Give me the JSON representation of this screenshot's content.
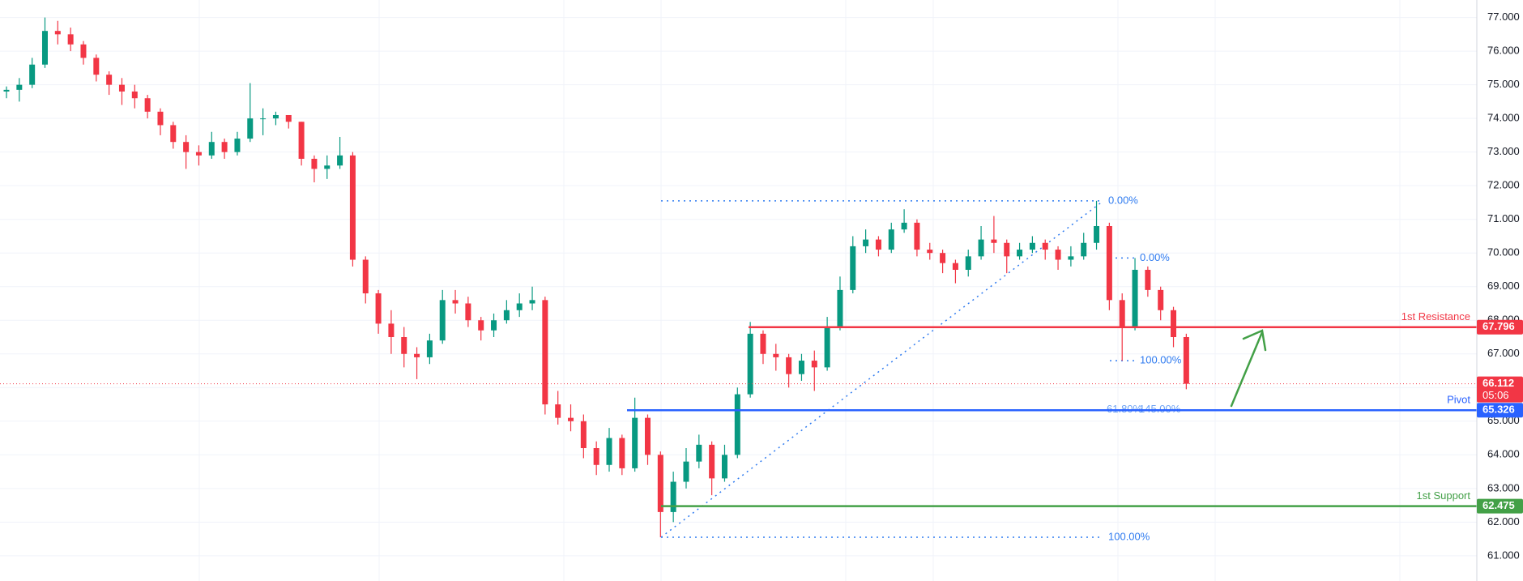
{
  "chart_data": {
    "type": "candlestick",
    "ylim": [
      60.25,
      77.52
    ],
    "yticks": [
      {
        "value": 61,
        "label": "61.000"
      },
      {
        "value": 62,
        "label": "62.000"
      },
      {
        "value": 63,
        "label": "63.000"
      },
      {
        "value": 64,
        "label": "64.000"
      },
      {
        "value": 65,
        "label": "65.000"
      },
      {
        "value": 66,
        "label": "66.000"
      },
      {
        "value": 67,
        "label": "67.000"
      },
      {
        "value": 68,
        "label": "68.000"
      },
      {
        "value": 69,
        "label": "69.000"
      },
      {
        "value": 70,
        "label": "70.000"
      },
      {
        "value": 71,
        "label": "71.000"
      },
      {
        "value": 72,
        "label": "72.000"
      },
      {
        "value": 73,
        "label": "73.000"
      },
      {
        "value": 74,
        "label": "74.000"
      },
      {
        "value": 75,
        "label": "75.000"
      },
      {
        "value": 76,
        "label": "76.000"
      },
      {
        "value": 77,
        "label": "77.000"
      }
    ],
    "grid": true,
    "up_color": "#089981",
    "down_color": "#f23645",
    "candles": {
      "open": [
        74.8,
        74.85,
        75.0,
        75.6,
        76.6,
        76.5,
        76.2,
        75.8,
        75.3,
        75.0,
        74.8,
        74.6,
        74.2,
        73.8,
        73.3,
        73.0,
        72.9,
        73.3,
        73.0,
        73.4,
        74.0,
        74.0,
        74.1,
        73.9,
        72.8,
        72.5,
        72.6,
        72.9,
        69.8,
        68.8,
        67.9,
        67.5,
        67.0,
        66.9,
        67.4,
        68.6,
        68.5,
        68.0,
        67.7,
        68.0,
        68.3,
        68.5,
        68.6,
        65.5,
        65.1,
        65.0,
        64.2,
        63.7,
        64.5,
        63.6,
        65.1,
        64.0,
        62.3,
        63.2,
        63.8,
        64.3,
        63.3,
        64.0,
        65.8,
        67.6,
        67.0,
        66.9,
        66.4,
        66.8,
        66.6,
        67.8,
        68.9,
        70.2,
        70.4,
        70.1,
        70.7,
        70.9,
        70.1,
        70.0,
        69.7,
        69.5,
        69.9,
        70.4,
        70.3,
        69.9,
        70.1,
        70.3,
        70.1,
        69.8,
        69.9,
        70.3,
        70.8,
        68.6,
        67.8,
        69.5,
        68.9,
        68.3,
        67.5
      ],
      "high": [
        74.95,
        75.2,
        75.8,
        77.0,
        76.9,
        76.7,
        76.3,
        75.9,
        75.4,
        75.2,
        75.0,
        74.7,
        74.3,
        73.9,
        73.5,
        73.2,
        73.6,
        73.4,
        73.6,
        75.05,
        74.3,
        74.2,
        74.1,
        73.9,
        72.9,
        72.9,
        73.45,
        73.0,
        69.9,
        68.9,
        68.3,
        67.8,
        67.2,
        67.6,
        68.9,
        68.9,
        68.7,
        68.1,
        68.2,
        68.6,
        68.8,
        69.0,
        68.7,
        65.9,
        65.5,
        65.2,
        64.4,
        64.8,
        64.6,
        65.7,
        65.2,
        64.1,
        63.5,
        64.2,
        64.6,
        64.4,
        64.3,
        66.0,
        67.95,
        67.7,
        67.3,
        67.0,
        67.0,
        67.1,
        68.1,
        69.3,
        70.5,
        70.7,
        70.5,
        70.9,
        71.3,
        71.0,
        70.3,
        70.1,
        69.8,
        70.1,
        70.8,
        71.1,
        70.4,
        70.3,
        70.5,
        70.4,
        70.2,
        70.2,
        70.6,
        71.55,
        70.9,
        68.8,
        69.85,
        69.6,
        69.0,
        68.4,
        67.6
      ],
      "low": [
        74.6,
        74.5,
        74.9,
        75.5,
        76.2,
        76.0,
        75.6,
        75.1,
        74.7,
        74.4,
        74.3,
        74.0,
        73.5,
        73.1,
        72.5,
        72.6,
        72.8,
        72.8,
        72.9,
        73.3,
        73.5,
        73.8,
        73.7,
        72.6,
        72.1,
        72.2,
        72.5,
        69.6,
        68.5,
        67.6,
        67.0,
        66.6,
        66.25,
        66.7,
        67.3,
        68.2,
        67.8,
        67.4,
        67.5,
        67.9,
        68.1,
        68.3,
        65.2,
        64.9,
        64.7,
        63.9,
        63.4,
        63.5,
        63.4,
        63.5,
        63.7,
        61.55,
        62.0,
        63.0,
        63.6,
        62.8,
        63.2,
        63.9,
        65.7,
        66.7,
        66.5,
        66.0,
        66.2,
        65.9,
        66.5,
        67.7,
        68.8,
        70.0,
        69.9,
        70.0,
        70.6,
        69.9,
        69.8,
        69.4,
        69.1,
        69.3,
        69.8,
        70.0,
        69.4,
        69.8,
        70.0,
        69.8,
        69.5,
        69.6,
        69.8,
        70.1,
        68.3,
        66.8,
        67.7,
        68.7,
        68.0,
        67.2,
        65.95
      ],
      "close": [
        74.85,
        75.0,
        75.6,
        76.6,
        76.5,
        76.2,
        75.8,
        75.3,
        75.0,
        74.8,
        74.6,
        74.2,
        73.8,
        73.3,
        73.0,
        72.9,
        73.3,
        73.0,
        73.4,
        74.0,
        74.0,
        74.1,
        73.9,
        72.8,
        72.5,
        72.6,
        72.9,
        69.8,
        68.8,
        67.9,
        67.5,
        67.0,
        66.9,
        67.4,
        68.6,
        68.5,
        68.0,
        67.7,
        68.0,
        68.3,
        68.5,
        68.6,
        65.5,
        65.1,
        65.0,
        64.2,
        63.7,
        64.5,
        63.6,
        65.1,
        64.0,
        62.3,
        63.2,
        63.8,
        64.3,
        63.3,
        64.0,
        65.8,
        67.6,
        67.0,
        66.9,
        66.4,
        66.8,
        66.6,
        67.8,
        68.9,
        70.2,
        70.4,
        70.1,
        70.7,
        70.9,
        70.1,
        70.0,
        69.7,
        69.5,
        69.9,
        70.4,
        70.3,
        69.9,
        70.1,
        70.3,
        70.1,
        69.8,
        69.9,
        70.3,
        70.8,
        68.6,
        67.8,
        69.5,
        68.9,
        68.3,
        67.5,
        66.112
      ]
    },
    "levels": [
      {
        "name": "1st Resistance",
        "value": 67.796,
        "color": "#f23645"
      },
      {
        "name": "Pivot",
        "value": 65.326,
        "color": "#2962ff"
      },
      {
        "name": "1st Support",
        "value": 62.475,
        "color": "#43a047"
      }
    ],
    "last_price": {
      "value": 66.112,
      "countdown": "05:06",
      "color": "#f23645"
    },
    "fib_color": "#2f7bf0",
    "fib_main": [
      {
        "value": 71.55,
        "label": "0.00%"
      },
      {
        "value": 61.55,
        "label": "100.00%"
      }
    ],
    "fib_mid": [
      {
        "value": 65.34,
        "label": "61.80%"
      },
      {
        "value": 65.34,
        "label": "145.00%"
      }
    ],
    "fib_second": [
      {
        "value": 69.85,
        "label": "0.00%"
      },
      {
        "value": 66.8,
        "label": "100.00%"
      }
    ]
  }
}
